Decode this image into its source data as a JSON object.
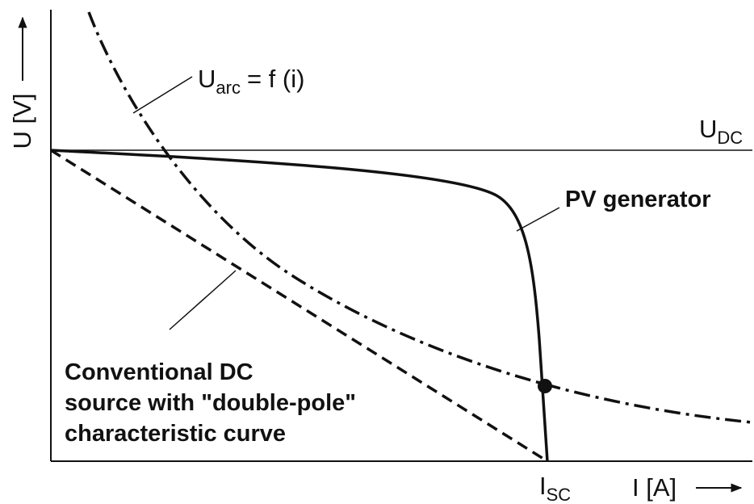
{
  "axes": {
    "y_label": "U [V]",
    "x_label": "I [A]"
  },
  "labels": {
    "u_arc": {
      "main": "U",
      "sub": "arc",
      "rest": "= f (i)"
    },
    "u_dc": {
      "main": "U",
      "sub": "DC"
    },
    "pv": "PV generator",
    "conventional": [
      "Conventional DC",
      "source with \"double-pole\"",
      "characteristic curve"
    ],
    "isc": {
      "main": "I",
      "sub": "SC"
    }
  }
}
